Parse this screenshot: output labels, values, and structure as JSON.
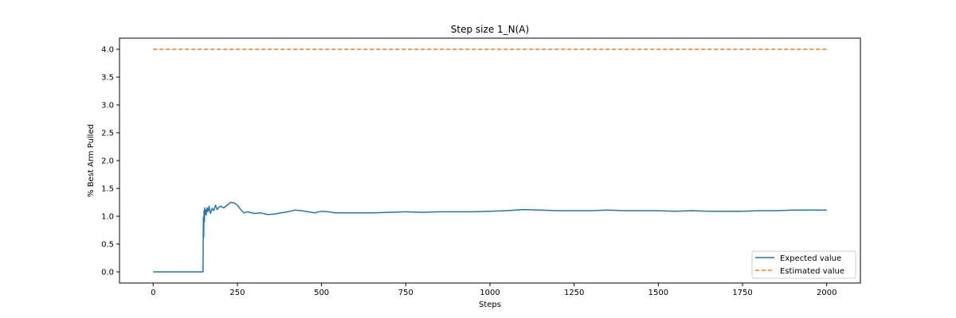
{
  "chart_data": {
    "type": "line",
    "title": "Step size 1_N(A)",
    "xlabel": "Steps",
    "ylabel": "% Best Arm Pulled",
    "xlim": [
      -100,
      2100
    ],
    "ylim": [
      -0.2,
      4.2
    ],
    "xticks": [
      0,
      250,
      500,
      750,
      1000,
      1250,
      1500,
      1750,
      2000
    ],
    "yticks": [
      0.0,
      0.5,
      1.0,
      1.5,
      2.0,
      2.5,
      3.0,
      3.5,
      4.0
    ],
    "xtick_labels": [
      "0",
      "250",
      "500",
      "750",
      "1000",
      "1250",
      "1500",
      "1750",
      "2000"
    ],
    "ytick_labels": [
      "0.0",
      "0.5",
      "1.0",
      "1.5",
      "2.0",
      "2.5",
      "3.0",
      "3.5",
      "4.0"
    ],
    "grid": false,
    "legend_position": "lower-right",
    "series": [
      {
        "name": "Expected value",
        "color": "#1f77b4",
        "style": "solid",
        "x": [
          0,
          148,
          149,
          150,
          151,
          152,
          153,
          154,
          155,
          157,
          160,
          163,
          166,
          170,
          175,
          180,
          185,
          190,
          195,
          200,
          210,
          220,
          230,
          240,
          250,
          260,
          270,
          280,
          300,
          320,
          340,
          360,
          380,
          400,
          420,
          440,
          460,
          480,
          500,
          520,
          540,
          560,
          600,
          650,
          700,
          750,
          800,
          850,
          900,
          950,
          1000,
          1050,
          1100,
          1150,
          1200,
          1250,
          1300,
          1350,
          1400,
          1450,
          1500,
          1550,
          1600,
          1650,
          1700,
          1750,
          1800,
          1850,
          1900,
          1950,
          2000
        ],
        "y": [
          0.0,
          0.0,
          0.98,
          0.62,
          1.1,
          0.9,
          1.15,
          1.05,
          1.12,
          1.02,
          1.15,
          1.08,
          1.18,
          1.05,
          1.14,
          1.1,
          1.2,
          1.12,
          1.16,
          1.18,
          1.15,
          1.2,
          1.25,
          1.24,
          1.2,
          1.12,
          1.06,
          1.08,
          1.05,
          1.06,
          1.03,
          1.04,
          1.06,
          1.08,
          1.11,
          1.1,
          1.08,
          1.06,
          1.09,
          1.08,
          1.06,
          1.06,
          1.06,
          1.06,
          1.07,
          1.08,
          1.07,
          1.08,
          1.08,
          1.08,
          1.09,
          1.1,
          1.12,
          1.11,
          1.1,
          1.1,
          1.1,
          1.11,
          1.1,
          1.1,
          1.1,
          1.09,
          1.1,
          1.09,
          1.09,
          1.09,
          1.1,
          1.1,
          1.11,
          1.11,
          1.11
        ]
      },
      {
        "name": "Estimated value",
        "color": "#ff7f0e",
        "style": "dashed",
        "x": [
          0,
          2000
        ],
        "y": [
          4.0,
          4.0
        ]
      }
    ]
  }
}
